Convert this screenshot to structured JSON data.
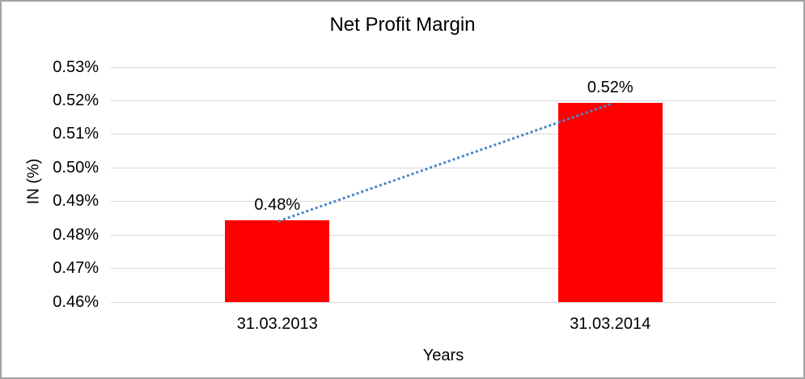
{
  "chart_data": {
    "type": "bar",
    "title": "Net Profit Margin",
    "xlabel": "Years",
    "ylabel": "IN (%)",
    "categories": [
      "31.03.2013",
      "31.03.2014"
    ],
    "values": [
      0.4843,
      0.5193
    ],
    "data_labels": [
      "0.48%",
      "0.52%"
    ],
    "series": [
      {
        "name": "Net Profit Margin",
        "values": [
          0.4843,
          0.5193
        ]
      }
    ],
    "ytick_labels": [
      "0.53%",
      "0.52%",
      "0.51%",
      "0.50%",
      "0.49%",
      "0.48%",
      "0.47%",
      "0.46%"
    ],
    "ylim": [
      0.46,
      0.53
    ],
    "grid": "horizontal",
    "legend": "none",
    "bar_color": "#FF0000",
    "trendline": {
      "style": "dotted",
      "color": "#4A86C8",
      "from": 0,
      "to": 1
    }
  },
  "colors": {
    "background": "#FFFFFF",
    "frame_border": "#A3A3A3",
    "gridline": "#D9D9D9",
    "text": "#000000",
    "bar": "#FF0000",
    "trendline": "#4A86C8"
  }
}
